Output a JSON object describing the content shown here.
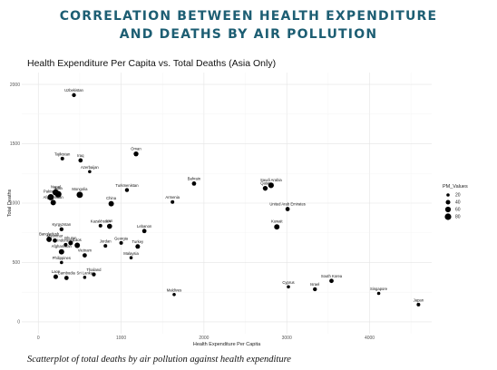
{
  "header": {
    "line1": "CORRELATION BETWEEN HEALTH EXPENDITURE",
    "line2": "AND DEATHS BY AIR POLLUTION"
  },
  "caption": "Scatterplot of total deaths by air pollution against health expenditure",
  "chart_data": {
    "type": "scatter",
    "title": "Health Expenditure Per Capita vs. Total Deaths (Asia Only)",
    "xlabel": "Health Expenditure Per Capita",
    "ylabel": "Total Deaths",
    "xlim": [
      -200,
      4750
    ],
    "ylim": [
      -100,
      2100
    ],
    "x_ticks": [
      0,
      1000,
      2000,
      3000,
      4000
    ],
    "y_ticks": [
      0,
      500,
      1000,
      1500,
      2000
    ],
    "grid": true,
    "legend": {
      "title": "PM_Values",
      "position": "right",
      "sizes": [
        20,
        40,
        60,
        80
      ]
    },
    "points": [
      {
        "label": "Uzbekistan",
        "x": 430,
        "y": 1910,
        "pm": 30
      },
      {
        "label": "Oman",
        "x": 1180,
        "y": 1415,
        "pm": 45
      },
      {
        "label": "Tajikistan",
        "x": 290,
        "y": 1375,
        "pm": 25
      },
      {
        "label": "Iraq",
        "x": 510,
        "y": 1360,
        "pm": 35
      },
      {
        "label": "Azerbaijan",
        "x": 620,
        "y": 1265,
        "pm": 20
      },
      {
        "label": "Bahrain",
        "x": 1880,
        "y": 1165,
        "pm": 35
      },
      {
        "label": "Saudi Arabia",
        "x": 2810,
        "y": 1150,
        "pm": 60
      },
      {
        "label": "Qatar",
        "x": 2740,
        "y": 1125,
        "pm": 45
      },
      {
        "label": "Turkmenistan",
        "x": 1070,
        "y": 1110,
        "pm": 30
      },
      {
        "label": "Nepal",
        "x": 210,
        "y": 1090,
        "pm": 75
      },
      {
        "label": "Mongolia",
        "x": 500,
        "y": 1070,
        "pm": 75
      },
      {
        "label": "India",
        "x": 240,
        "y": 1075,
        "pm": 80
      },
      {
        "label": "Pakistan",
        "x": 150,
        "y": 1050,
        "pm": 75
      },
      {
        "label": "Armenia",
        "x": 1620,
        "y": 1010,
        "pm": 25
      },
      {
        "label": "China",
        "x": 880,
        "y": 995,
        "pm": 55
      },
      {
        "label": "Afghanistan",
        "x": 180,
        "y": 1005,
        "pm": 55
      },
      {
        "label": "United Arab Emirates",
        "x": 3010,
        "y": 950,
        "pm": 35
      },
      {
        "label": "Kazakhstan",
        "x": 750,
        "y": 810,
        "pm": 25
      },
      {
        "label": "Iran",
        "x": 860,
        "y": 805,
        "pm": 50
      },
      {
        "label": "Kuwait",
        "x": 2880,
        "y": 800,
        "pm": 55
      },
      {
        "label": "Kyrgyzstan",
        "x": 280,
        "y": 780,
        "pm": 30
      },
      {
        "label": "Lebanon",
        "x": 1280,
        "y": 765,
        "pm": 35
      },
      {
        "label": "Bangladesh",
        "x": 130,
        "y": 695,
        "pm": 55
      },
      {
        "label": "Myanmar",
        "x": 200,
        "y": 685,
        "pm": 35
      },
      {
        "label": "Bhutan",
        "x": 390,
        "y": 665,
        "pm": 40
      },
      {
        "label": "Indonesia",
        "x": 330,
        "y": 650,
        "pm": 25
      },
      {
        "label": "Georgia",
        "x": 1000,
        "y": 665,
        "pm": 25
      },
      {
        "label": "Jordan",
        "x": 810,
        "y": 640,
        "pm": 25
      },
      {
        "label": "Turkey",
        "x": 1200,
        "y": 635,
        "pm": 40
      },
      {
        "label": "Laos",
        "x": 470,
        "y": 645,
        "pm": 55
      },
      {
        "label": "Afghanistan",
        "x": 280,
        "y": 590,
        "pm": 55
      },
      {
        "label": "Vietnam",
        "x": 560,
        "y": 560,
        "pm": 35
      },
      {
        "label": "Malaysia",
        "x": 1120,
        "y": 540,
        "pm": 20
      },
      {
        "label": "Philippines",
        "x": 280,
        "y": 500,
        "pm": 20
      },
      {
        "label": "Thailand",
        "x": 670,
        "y": 400,
        "pm": 30
      },
      {
        "label": "Laos",
        "x": 210,
        "y": 380,
        "pm": 40
      },
      {
        "label": "Cambodia",
        "x": 340,
        "y": 370,
        "pm": 35
      },
      {
        "label": "Sri Lanka",
        "x": 560,
        "y": 375,
        "pm": 20
      },
      {
        "label": "South Korea",
        "x": 3540,
        "y": 345,
        "pm": 35
      },
      {
        "label": "Cyprus",
        "x": 3020,
        "y": 295,
        "pm": 20
      },
      {
        "label": "Israel",
        "x": 3340,
        "y": 275,
        "pm": 30
      },
      {
        "label": "Singapore",
        "x": 4110,
        "y": 240,
        "pm": 20
      },
      {
        "label": "Maldives",
        "x": 1640,
        "y": 230,
        "pm": 20
      },
      {
        "label": "Japan",
        "x": 4590,
        "y": 145,
        "pm": 25
      }
    ]
  }
}
